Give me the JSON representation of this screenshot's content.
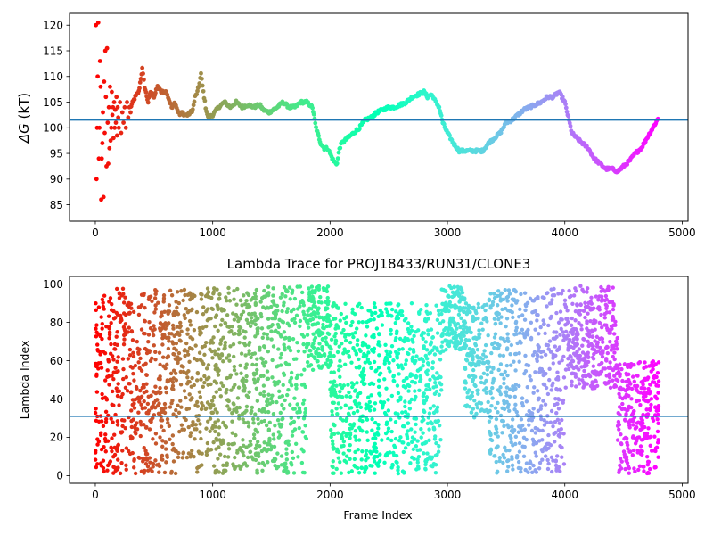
{
  "chart_data": [
    {
      "type": "scatter",
      "title": "",
      "xlabel": "",
      "ylabel_symbol": "ΔG",
      "ylabel_unit": " (kT)",
      "xlim": [
        -220,
        5050
      ],
      "ylim": [
        81.8,
        122.3
      ],
      "xticks": [
        0,
        1000,
        2000,
        3000,
        4000,
        5000
      ],
      "yticks": [
        85,
        90,
        95,
        100,
        105,
        110,
        115,
        120
      ],
      "hline": 101.5,
      "hline_color": "#1f77b4",
      "colormap": "rainbow",
      "grid": false,
      "scatter_points": [
        [
          5,
          120
        ],
        [
          10,
          90
        ],
        [
          15,
          100
        ],
        [
          20,
          110
        ],
        [
          25,
          120.5
        ],
        [
          30,
          94
        ],
        [
          35,
          100
        ],
        [
          40,
          113
        ],
        [
          45,
          108
        ],
        [
          50,
          86
        ],
        [
          55,
          94
        ],
        [
          60,
          97
        ],
        [
          65,
          103
        ],
        [
          70,
          86.5
        ],
        [
          75,
          109
        ],
        [
          80,
          99
        ],
        [
          85,
          115
        ],
        [
          90,
          106
        ],
        [
          95,
          92.5
        ],
        [
          100,
          115.5
        ],
        [
          105,
          101
        ],
        [
          110,
          93
        ],
        [
          115,
          104
        ],
        [
          120,
          96
        ],
        [
          125,
          108
        ],
        [
          130,
          97.5
        ],
        [
          135,
          100
        ],
        [
          140,
          107
        ],
        [
          145,
          102.5
        ],
        [
          150,
          104
        ],
        [
          155,
          98
        ],
        [
          160,
          105
        ],
        [
          165,
          100
        ],
        [
          170,
          103.5
        ],
        [
          175,
          101
        ],
        [
          180,
          106
        ],
        [
          185,
          98.5
        ],
        [
          190,
          104
        ],
        [
          195,
          102
        ],
        [
          200,
          100
        ],
        [
          210,
          105
        ],
        [
          220,
          99
        ],
        [
          230,
          103
        ],
        [
          240,
          101
        ],
        [
          250,
          104
        ],
        [
          260,
          100
        ],
        [
          270,
          105
        ],
        [
          280,
          102
        ],
        [
          290,
          104
        ],
        [
          300,
          103
        ]
      ],
      "curve_points": [
        [
          300,
          104
        ],
        [
          340,
          106
        ],
        [
          370,
          107
        ],
        [
          400,
          111.5
        ],
        [
          420,
          108
        ],
        [
          450,
          105
        ],
        [
          470,
          107
        ],
        [
          500,
          106
        ],
        [
          530,
          108
        ],
        [
          560,
          107
        ],
        [
          600,
          107
        ],
        [
          620,
          106
        ],
        [
          650,
          104
        ],
        [
          680,
          105
        ],
        [
          700,
          103.5
        ],
        [
          720,
          102.5
        ],
        [
          740,
          103
        ],
        [
          760,
          102.5
        ],
        [
          790,
          102.5
        ],
        [
          830,
          103.5
        ],
        [
          850,
          106
        ],
        [
          870,
          107
        ],
        [
          880,
          108
        ],
        [
          900,
          110.5
        ],
        [
          920,
          107
        ],
        [
          940,
          104
        ],
        [
          960,
          102
        ],
        [
          1000,
          102.5
        ],
        [
          1050,
          104
        ],
        [
          1100,
          105
        ],
        [
          1150,
          104
        ],
        [
          1200,
          105
        ],
        [
          1250,
          104
        ],
        [
          1300,
          104.5
        ],
        [
          1350,
          104
        ],
        [
          1400,
          104.5
        ],
        [
          1430,
          103.5
        ],
        [
          1480,
          103
        ],
        [
          1550,
          104
        ],
        [
          1600,
          105
        ],
        [
          1650,
          104
        ],
        [
          1700,
          104
        ],
        [
          1750,
          105
        ],
        [
          1800,
          105
        ],
        [
          1850,
          104
        ],
        [
          1880,
          100
        ],
        [
          1920,
          97
        ],
        [
          1950,
          96
        ],
        [
          1980,
          96
        ],
        [
          2000,
          95
        ],
        [
          2030,
          93.5
        ],
        [
          2060,
          93
        ],
        [
          2080,
          96
        ],
        [
          2100,
          97
        ],
        [
          2150,
          98
        ],
        [
          2200,
          99
        ],
        [
          2250,
          100
        ],
        [
          2300,
          101.5
        ],
        [
          2350,
          102
        ],
        [
          2400,
          103
        ],
        [
          2450,
          103.5
        ],
        [
          2500,
          104
        ],
        [
          2550,
          104
        ],
        [
          2600,
          104.5
        ],
        [
          2650,
          105
        ],
        [
          2700,
          106
        ],
        [
          2750,
          106.5
        ],
        [
          2800,
          107
        ],
        [
          2830,
          106
        ],
        [
          2860,
          106.5
        ],
        [
          2880,
          106
        ],
        [
          2900,
          105
        ],
        [
          2930,
          104
        ],
        [
          2960,
          101
        ],
        [
          3000,
          99
        ],
        [
          3050,
          97
        ],
        [
          3100,
          95.5
        ],
        [
          3200,
          95.5
        ],
        [
          3300,
          95.5
        ],
        [
          3350,
          97
        ],
        [
          3400,
          98
        ],
        [
          3450,
          99
        ],
        [
          3500,
          101
        ],
        [
          3550,
          101.5
        ],
        [
          3600,
          102.5
        ],
        [
          3650,
          103.5
        ],
        [
          3700,
          104
        ],
        [
          3750,
          104.5
        ],
        [
          3800,
          105
        ],
        [
          3850,
          106
        ],
        [
          3900,
          106
        ],
        [
          3950,
          107
        ],
        [
          4000,
          105
        ],
        [
          4030,
          102
        ],
        [
          4060,
          99
        ],
        [
          4100,
          98
        ],
        [
          4150,
          97
        ],
        [
          4200,
          96
        ],
        [
          4250,
          94
        ],
        [
          4300,
          93
        ],
        [
          4350,
          92
        ],
        [
          4400,
          92
        ],
        [
          4450,
          91.5
        ],
        [
          4500,
          92.5
        ],
        [
          4550,
          93.5
        ],
        [
          4600,
          95
        ],
        [
          4650,
          96
        ],
        [
          4700,
          98
        ],
        [
          4750,
          100
        ],
        [
          4800,
          102
        ]
      ]
    },
    {
      "type": "scatter",
      "title": "Lambda Trace for PROJ18433/RUN31/CLONE3",
      "xlabel": "Frame Index",
      "ylabel": "Lambda Index",
      "xlim": [
        -220,
        5050
      ],
      "ylim": [
        -4,
        104
      ],
      "xticks": [
        0,
        1000,
        2000,
        3000,
        4000,
        5000
      ],
      "yticks": [
        0,
        20,
        40,
        60,
        80,
        100
      ],
      "hline": 31,
      "hline_color": "#1f77b4",
      "colormap": "rainbow",
      "grid": false,
      "n_frames": 4800,
      "segments": [
        {
          "x": [
            0,
            100
          ],
          "y": [
            2,
            98
          ],
          "color_at": 0
        },
        {
          "x": [
            100,
            600
          ],
          "y": [
            1,
            98
          ],
          "color_at": 300
        },
        {
          "x": [
            600,
            1400
          ],
          "y": [
            1,
            98
          ],
          "color_at": 1000
        },
        {
          "x": [
            1400,
            1800
          ],
          "y": [
            1,
            99
          ],
          "color_at": 1700
        },
        {
          "x": [
            1800,
            2000
          ],
          "y": [
            55,
            99
          ],
          "color_at": 1900
        },
        {
          "x": [
            2000,
            2950
          ],
          "y": [
            1,
            90
          ],
          "color_at": 2400
        },
        {
          "x": [
            2950,
            3150
          ],
          "y": [
            65,
            99
          ],
          "color_at": 3050
        },
        {
          "x": [
            3150,
            3350
          ],
          "y": [
            30,
            90
          ],
          "color_at": 3250
        },
        {
          "x": [
            3350,
            4000
          ],
          "y": [
            1,
            98
          ],
          "color_at": 3700
        },
        {
          "x": [
            4000,
            4450
          ],
          "y": [
            45,
            99
          ],
          "color_at": 4200
        },
        {
          "x": [
            4450,
            4800
          ],
          "y": [
            1,
            60
          ],
          "color_at": 4600
        }
      ]
    }
  ]
}
